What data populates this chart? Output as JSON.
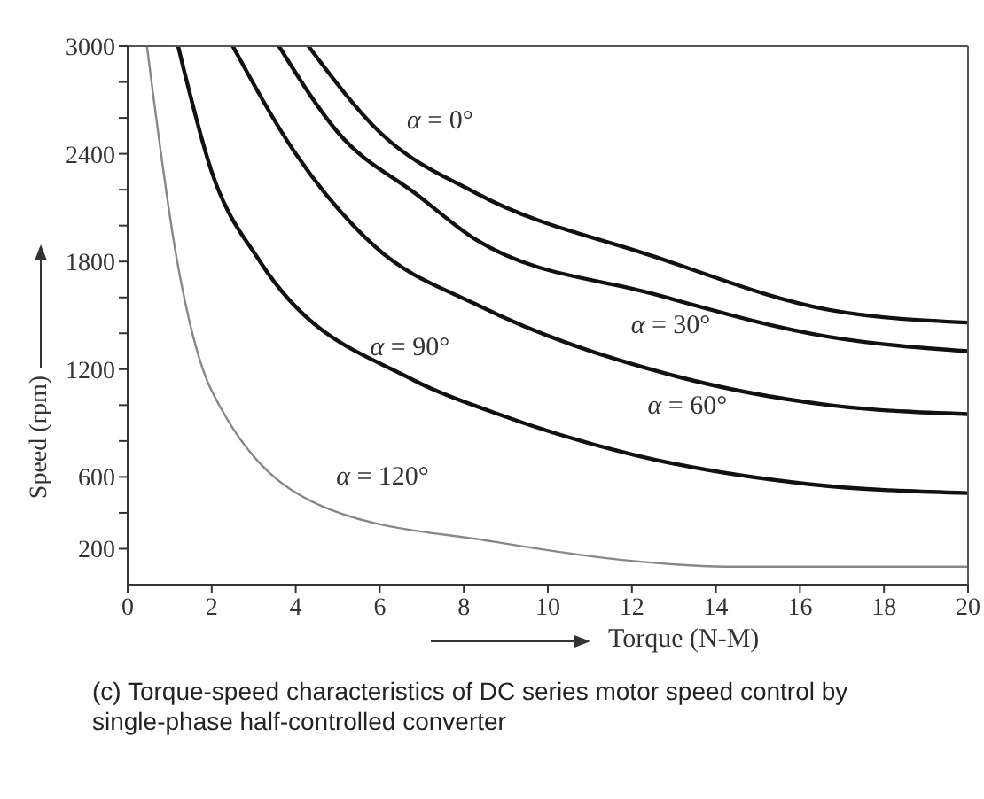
{
  "chart_data": {
    "type": "line",
    "xlabel": "Torque (N-M)",
    "ylabel": "Speed (rpm)",
    "xlim": [
      0,
      20
    ],
    "xticks": [
      0,
      2,
      4,
      6,
      8,
      10,
      12,
      14,
      16,
      18,
      20
    ],
    "ylim": [
      0,
      3000
    ],
    "yticks": [
      {
        "value": 200,
        "label": "200"
      },
      {
        "value": 400,
        "label": null
      },
      {
        "value": 600,
        "label": "600"
      },
      {
        "value": 800,
        "label": null
      },
      {
        "value": 1000,
        "label": null
      },
      {
        "value": 1200,
        "label": "1200"
      },
      {
        "value": 1400,
        "label": null
      },
      {
        "value": 1600,
        "label": null
      },
      {
        "value": 1800,
        "label": "1800"
      },
      {
        "value": 2000,
        "label": null
      },
      {
        "value": 2200,
        "label": null
      },
      {
        "value": 2400,
        "label": "2400"
      },
      {
        "value": 2600,
        "label": null
      },
      {
        "value": 2800,
        "label": null
      },
      {
        "value": 3000,
        "label": "3000"
      }
    ],
    "legend": false,
    "marker": "none",
    "line_style": "solid",
    "series": [
      {
        "name": "α = 0°",
        "color": "#111111",
        "x": [
          4.3,
          6,
          8.3,
          12.5,
          16.7,
          20
        ],
        "values": [
          3000,
          2520,
          2180,
          1830,
          1530,
          1460
        ]
      },
      {
        "name": "α = 30°",
        "color": "#111111",
        "x": [
          3.6,
          5,
          6.9,
          8.3,
          12.5,
          16.7,
          20
        ],
        "values": [
          3000,
          2520,
          2170,
          1920,
          1620,
          1380,
          1300
        ]
      },
      {
        "name": "α = 60°",
        "color": "#111111",
        "x": [
          2.5,
          4,
          5.9,
          8.3,
          12.9,
          16.7,
          20
        ],
        "values": [
          3000,
          2400,
          1880,
          1560,
          1170,
          1000,
          950
        ]
      },
      {
        "name": "α = 90°",
        "color": "#111111",
        "x": [
          1.2,
          2,
          3.15,
          6.8,
          8.7,
          12.1,
          16.2,
          20
        ],
        "values": [
          3000,
          2300,
          1800,
          1140,
          960,
          720,
          560,
          510
        ]
      },
      {
        "name": "α = 120°",
        "color": "#888888",
        "x": [
          0.46,
          1.18,
          2,
          4.8,
          8.7,
          12.1,
          14.2,
          20
        ],
        "values": [
          3000,
          1800,
          1080,
          420,
          240,
          130,
          100,
          100
        ]
      }
    ],
    "annotations": [
      "(c) Torque-speed characteristics of DC series motor speed control by single-phase half-controlled converter"
    ]
  }
}
